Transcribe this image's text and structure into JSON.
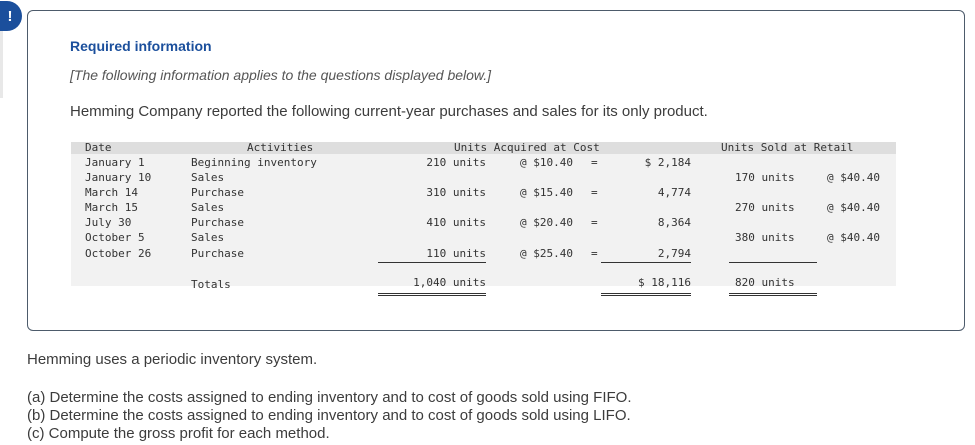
{
  "alert_icon": "!",
  "required": {
    "title": "Required information",
    "subtitle": "[The following information applies to the questions displayed below.]"
  },
  "intro": "Hemming Company reported the following current-year purchases and sales for its only product.",
  "table": {
    "headers": {
      "date": "Date",
      "activities": "Activities",
      "acquired": "Units Acquired at Cost",
      "sold": "Units Sold at Retail"
    },
    "rows": [
      {
        "date": "January 1",
        "activity": "Beginning inventory",
        "acq_units": "210 units",
        "acq_price": "@ $10.40",
        "eq": "=",
        "cost": "$ 2,184",
        "sold_units": "",
        "sold_price": ""
      },
      {
        "date": "January 10",
        "activity": "Sales",
        "acq_units": "",
        "acq_price": "",
        "eq": "",
        "cost": "",
        "sold_units": "170 units",
        "sold_price": "@ $40.40"
      },
      {
        "date": "March 14",
        "activity": "Purchase",
        "acq_units": "310 units",
        "acq_price": "@ $15.40",
        "eq": "=",
        "cost": "4,774",
        "sold_units": "",
        "sold_price": ""
      },
      {
        "date": "March 15",
        "activity": "Sales",
        "acq_units": "",
        "acq_price": "",
        "eq": "",
        "cost": "",
        "sold_units": "270 units",
        "sold_price": "@ $40.40"
      },
      {
        "date": "July 30",
        "activity": "Purchase",
        "acq_units": "410 units",
        "acq_price": "@ $20.40",
        "eq": "=",
        "cost": "8,364",
        "sold_units": "",
        "sold_price": ""
      },
      {
        "date": "October 5",
        "activity": "Sales",
        "acq_units": "",
        "acq_price": "",
        "eq": "",
        "cost": "",
        "sold_units": "380 units",
        "sold_price": "@ $40.40"
      },
      {
        "date": "October 26",
        "activity": "Purchase",
        "acq_units": "110 units",
        "acq_price": "@ $25.40",
        "eq": "=",
        "cost": "2,794",
        "sold_units": "",
        "sold_price": ""
      }
    ],
    "totals": {
      "label": "Totals",
      "acq_units": "1,040 units",
      "cost": "$ 18,116",
      "sold_units": "820 units"
    }
  },
  "system_text": "Hemming uses a periodic inventory system.",
  "questions": [
    "(a) Determine the costs assigned to ending inventory and to cost of goods sold using FIFO.",
    "(b) Determine the costs assigned to ending inventory and to cost of goods sold using LIFO.",
    "(c) Compute the gross profit for each method."
  ]
}
